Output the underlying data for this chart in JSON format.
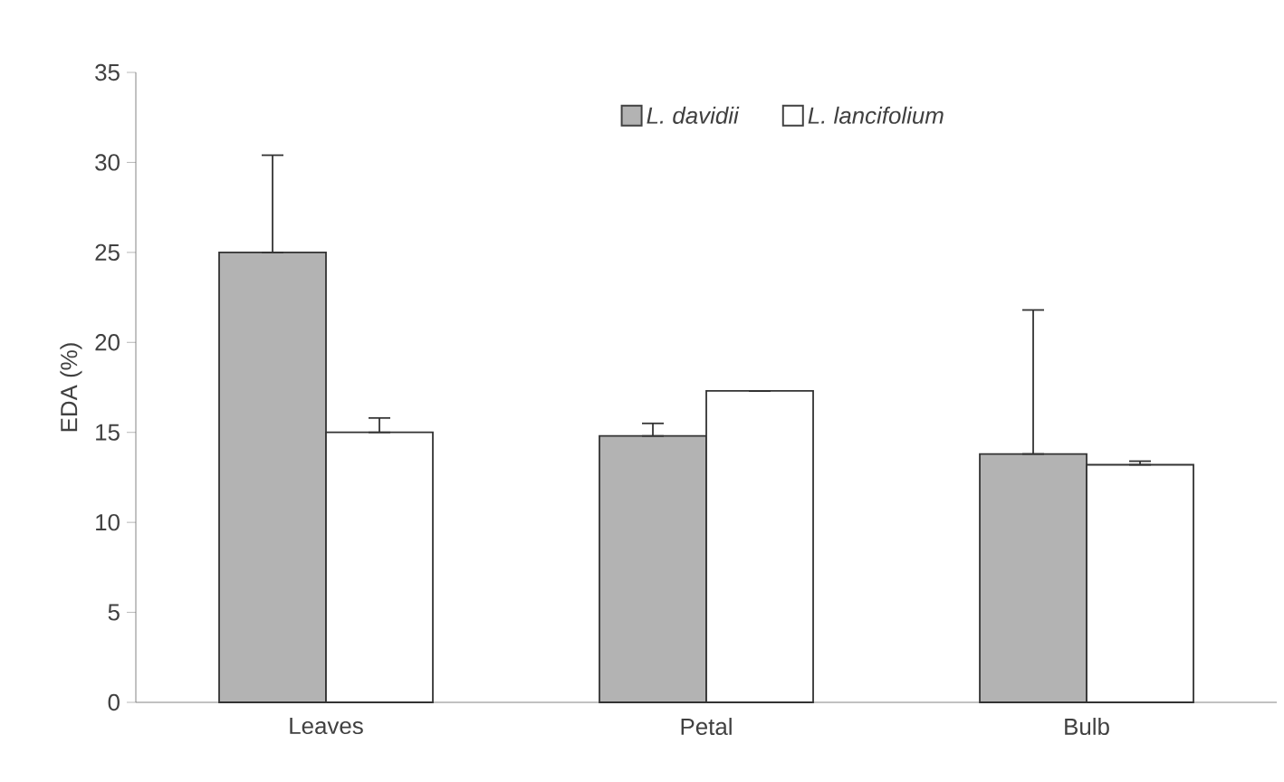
{
  "chart_data": {
    "type": "bar",
    "ylabel": "EDA (%)",
    "categories": [
      "Leaves",
      "Petal",
      "Bulb"
    ],
    "series": [
      {
        "name": "L. davidii",
        "color": "#b3b3b3",
        "values": [
          25,
          14.8,
          13.8
        ],
        "errors": [
          [
            25,
            30.4
          ],
          [
            14.8,
            15.5
          ],
          [
            13.8,
            21.8
          ]
        ]
      },
      {
        "name": "L. lancifolium",
        "color": "#ffffff",
        "values": [
          15,
          17.3,
          13.2
        ],
        "errors": [
          [
            15,
            15.8
          ],
          [
            17.3,
            17.3
          ],
          [
            13.2,
            13.4
          ]
        ]
      }
    ],
    "ylim": [
      0,
      35
    ],
    "yticks": [
      0,
      5,
      10,
      15,
      20,
      25,
      30,
      35
    ],
    "legend": "top right"
  }
}
